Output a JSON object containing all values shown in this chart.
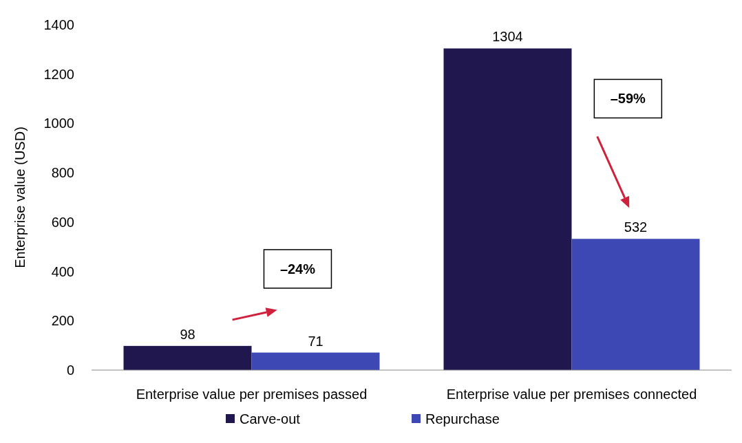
{
  "chart_data": {
    "type": "bar",
    "ylabel": "Enterprise value (USD)",
    "categories": [
      "Enterprise value per premises passed",
      "Enterprise value per premises connected"
    ],
    "series": [
      {
        "name": "Carve-out",
        "color": "#21174f",
        "values": [
          98,
          1304
        ]
      },
      {
        "name": "Repurchase",
        "color": "#3d48b5",
        "values": [
          71,
          532
        ]
      }
    ],
    "ylim": [
      0,
      1400
    ],
    "yticks": [
      0,
      200,
      400,
      600,
      800,
      1000,
      1200,
      1400
    ],
    "data_labels": true,
    "grid": false,
    "legend": "bottom",
    "annotations": [
      "–24%",
      "–59%"
    ]
  }
}
